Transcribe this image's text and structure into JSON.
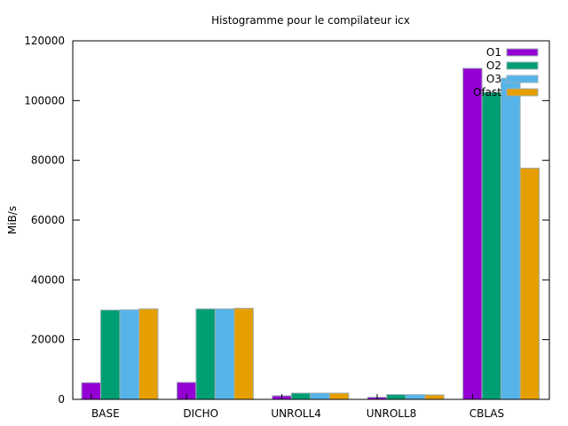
{
  "chart_data": {
    "type": "bar",
    "title": "Histogramme pour le compilateur icx",
    "xlabel": "",
    "ylabel": "MiB/s",
    "ylim": [
      0,
      120000
    ],
    "yticks": [
      0,
      20000,
      40000,
      60000,
      80000,
      100000,
      120000
    ],
    "grid": false,
    "legend_position": "top-right",
    "categories": [
      "BASE",
      "DICHO",
      "UNROLL4",
      "UNROLL8",
      "CBLAS"
    ],
    "series": [
      {
        "name": "O1",
        "color": "#9400d3",
        "values": [
          5600,
          5700,
          1200,
          700,
          110800
        ]
      },
      {
        "name": "O2",
        "color": "#009e73",
        "values": [
          29900,
          30300,
          2100,
          1600,
          102800
        ]
      },
      {
        "name": "O3",
        "color": "#56b4e9",
        "values": [
          30000,
          30300,
          2100,
          1600,
          107500
        ]
      },
      {
        "name": "Ofast",
        "color": "#e69f00",
        "values": [
          30300,
          30500,
          2100,
          1500,
          77400
        ]
      }
    ]
  }
}
